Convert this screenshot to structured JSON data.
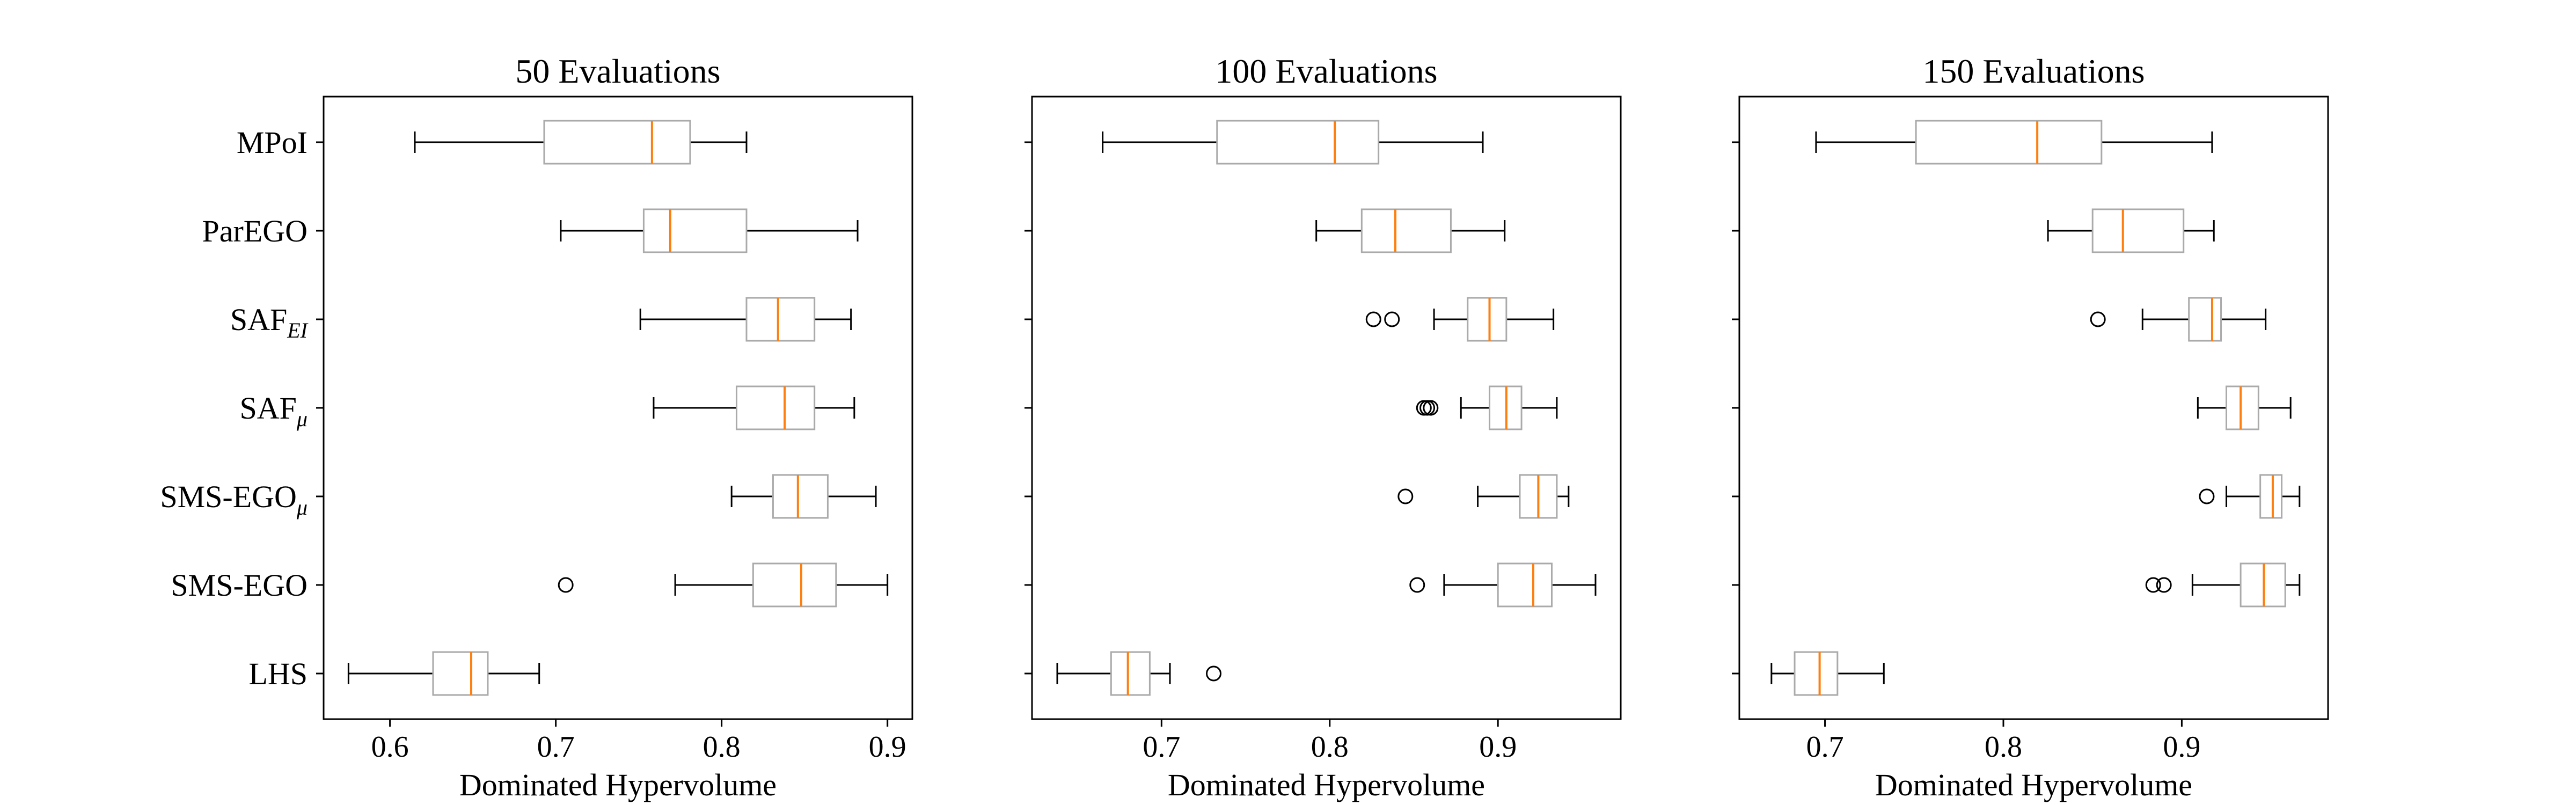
{
  "chart_data": [
    {
      "type": "boxplot",
      "title": "50 Evaluations",
      "xlabel": "Dominated Hypervolume",
      "xlim": [
        0.56,
        0.915
      ],
      "xticks": [
        0.6,
        0.7,
        0.8,
        0.9
      ],
      "xtick_labels": [
        "0.6",
        "0.7",
        "0.8",
        "0.9"
      ],
      "categories": [
        "MPoI",
        "ParEGO",
        "SAF",
        "SAF",
        "SMS-EGO",
        "SMS-EGO",
        "LHS"
      ],
      "category_subscripts": [
        "",
        "",
        "EI",
        "μ",
        "μ",
        "",
        ""
      ],
      "boxes": [
        {
          "whislo": 0.615,
          "q1": 0.693,
          "med": 0.758,
          "q3": 0.781,
          "whishi": 0.815,
          "fliers": []
        },
        {
          "whislo": 0.703,
          "q1": 0.753,
          "med": 0.769,
          "q3": 0.815,
          "whishi": 0.882,
          "fliers": []
        },
        {
          "whislo": 0.751,
          "q1": 0.815,
          "med": 0.834,
          "q3": 0.856,
          "whishi": 0.878,
          "fliers": []
        },
        {
          "whislo": 0.759,
          "q1": 0.809,
          "med": 0.838,
          "q3": 0.856,
          "whishi": 0.88,
          "fliers": []
        },
        {
          "whislo": 0.806,
          "q1": 0.831,
          "med": 0.846,
          "q3": 0.864,
          "whishi": 0.893,
          "fliers": []
        },
        {
          "whislo": 0.772,
          "q1": 0.819,
          "med": 0.848,
          "q3": 0.869,
          "whishi": 0.9,
          "fliers": [
            0.706
          ]
        },
        {
          "whislo": 0.575,
          "q1": 0.626,
          "med": 0.649,
          "q3": 0.659,
          "whishi": 0.69,
          "fliers": []
        }
      ]
    },
    {
      "type": "boxplot",
      "title": "100 Evaluations",
      "xlabel": "Dominated Hypervolume",
      "xlim": [
        0.623,
        0.973
      ],
      "xticks": [
        0.7,
        0.8,
        0.9
      ],
      "xtick_labels": [
        "0.7",
        "0.8",
        "0.9"
      ],
      "categories": [
        "MPoI",
        "ParEGO",
        "SAF",
        "SAF",
        "SMS-EGO",
        "SMS-EGO",
        "LHS"
      ],
      "category_subscripts": [
        "",
        "",
        "EI",
        "μ",
        "μ",
        "",
        ""
      ],
      "boxes": [
        {
          "whislo": 0.665,
          "q1": 0.733,
          "med": 0.803,
          "q3": 0.829,
          "whishi": 0.891,
          "fliers": []
        },
        {
          "whislo": 0.792,
          "q1": 0.819,
          "med": 0.839,
          "q3": 0.872,
          "whishi": 0.904,
          "fliers": []
        },
        {
          "whislo": 0.862,
          "q1": 0.882,
          "med": 0.895,
          "q3": 0.905,
          "whishi": 0.933,
          "fliers": [
            0.826,
            0.837
          ]
        },
        {
          "whislo": 0.878,
          "q1": 0.895,
          "med": 0.905,
          "q3": 0.914,
          "whishi": 0.935,
          "fliers": [
            0.856,
            0.858,
            0.86
          ]
        },
        {
          "whislo": 0.888,
          "q1": 0.913,
          "med": 0.924,
          "q3": 0.935,
          "whishi": 0.942,
          "fliers": [
            0.845
          ]
        },
        {
          "whislo": 0.868,
          "q1": 0.9,
          "med": 0.921,
          "q3": 0.932,
          "whishi": 0.958,
          "fliers": [
            0.852
          ]
        },
        {
          "whislo": 0.638,
          "q1": 0.67,
          "med": 0.68,
          "q3": 0.693,
          "whishi": 0.705,
          "fliers": [
            0.731
          ]
        }
      ]
    },
    {
      "type": "boxplot",
      "title": "150 Evaluations",
      "xlabel": "Dominated Hypervolume",
      "xlim": [
        0.652,
        0.982
      ],
      "xticks": [
        0.7,
        0.8,
        0.9
      ],
      "xtick_labels": [
        "0.7",
        "0.8",
        "0.9"
      ],
      "categories": [
        "MPoI",
        "ParEGO",
        "SAF",
        "SAF",
        "SMS-EGO",
        "SMS-EGO",
        "LHS"
      ],
      "category_subscripts": [
        "",
        "",
        "EI",
        "μ",
        "μ",
        "",
        ""
      ],
      "boxes": [
        {
          "whislo": 0.695,
          "q1": 0.751,
          "med": 0.819,
          "q3": 0.855,
          "whishi": 0.917,
          "fliers": []
        },
        {
          "whislo": 0.825,
          "q1": 0.85,
          "med": 0.867,
          "q3": 0.901,
          "whishi": 0.918,
          "fliers": []
        },
        {
          "whislo": 0.878,
          "q1": 0.904,
          "med": 0.917,
          "q3": 0.922,
          "whishi": 0.947,
          "fliers": [
            0.853
          ]
        },
        {
          "whislo": 0.909,
          "q1": 0.925,
          "med": 0.933,
          "q3": 0.943,
          "whishi": 0.961,
          "fliers": []
        },
        {
          "whislo": 0.925,
          "q1": 0.944,
          "med": 0.951,
          "q3": 0.956,
          "whishi": 0.966,
          "fliers": [
            0.914
          ]
        },
        {
          "whislo": 0.906,
          "q1": 0.933,
          "med": 0.946,
          "q3": 0.958,
          "whishi": 0.966,
          "fliers": [
            0.884,
            0.89
          ]
        },
        {
          "whislo": 0.67,
          "q1": 0.683,
          "med": 0.697,
          "q3": 0.707,
          "whishi": 0.733,
          "fliers": []
        }
      ]
    }
  ],
  "colors": {
    "box_edge": "#aaaaaa",
    "median": "#ff7f0e",
    "whisker": "#000000",
    "flier": "#000000",
    "axes": "#000000"
  }
}
